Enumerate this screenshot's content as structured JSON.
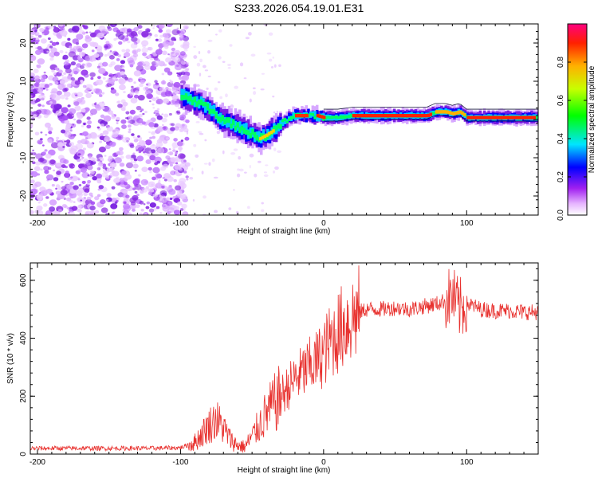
{
  "title": "S233.2026.054.19.01.E31",
  "chart_data": [
    {
      "type": "heatmap",
      "name": "spectrogram",
      "xlabel": "Height of straight line (km)",
      "ylabel": "Frequency (Hz)",
      "xlim": [
        -205,
        150
      ],
      "ylim": [
        -25,
        25
      ],
      "xticks": [
        -200,
        -100,
        0,
        100
      ],
      "yticks": [
        -20,
        -10,
        0,
        10,
        20
      ],
      "colorbar": {
        "label": "Normalized spectral amplitude",
        "range": [
          0.0,
          1.0
        ],
        "ticks": [
          0.0,
          0.2,
          0.4,
          0.6,
          0.8
        ],
        "tick_labels": [
          "0.0",
          "0.2",
          "0.4",
          "0.6",
          "0.8"
        ]
      },
      "ridge": {
        "x": [
          -100,
          -92,
          -85,
          -78,
          -72,
          -66,
          -60,
          -55,
          -50,
          -45,
          -40,
          -36,
          -30,
          -25,
          -20,
          -15,
          -10,
          -5,
          0,
          10,
          20,
          40,
          60,
          72,
          78,
          85,
          90,
          95,
          100,
          110,
          120,
          135,
          150
        ],
        "frequency": [
          6,
          5,
          4,
          2,
          0,
          -1,
          -2,
          -3,
          -4,
          -5,
          -4,
          -3,
          -1,
          0,
          1,
          1,
          1,
          1,
          0.5,
          0.5,
          1,
          1,
          1,
          1,
          2,
          2,
          1.5,
          2,
          0.5,
          0.5,
          0.5,
          0.5,
          0.5
        ]
      }
    },
    {
      "type": "line",
      "name": "snr",
      "xlabel": "Height of straight line (km)",
      "ylabel": "SNR (10 * v/v)",
      "xlim": [
        -205,
        150
      ],
      "ylim": [
        0,
        660
      ],
      "xticks": [
        -200,
        -100,
        0,
        100
      ],
      "yticks": [
        0,
        200,
        400,
        600
      ],
      "color": "#e8312e",
      "series": [
        {
          "name": "SNR",
          "x": [
            -205,
            -180,
            -150,
            -120,
            -100,
            -90,
            -85,
            -80,
            -75,
            -70,
            -65,
            -60,
            -55,
            -50,
            -45,
            -40,
            -35,
            -30,
            -25,
            -20,
            -15,
            -10,
            -5,
            0,
            5,
            10,
            15,
            20,
            25,
            30,
            40,
            50,
            60,
            70,
            80,
            85,
            90,
            95,
            100,
            110,
            120,
            130,
            140,
            150
          ],
          "y": [
            20,
            20,
            20,
            20,
            22,
            40,
            70,
            100,
            120,
            90,
            50,
            30,
            25,
            60,
            100,
            140,
            170,
            200,
            230,
            260,
            280,
            300,
            320,
            350,
            390,
            420,
            450,
            470,
            490,
            500,
            500,
            505,
            500,
            510,
            520,
            530,
            545,
            500,
            520,
            500,
            495,
            495,
            490,
            490
          ]
        }
      ]
    }
  ]
}
